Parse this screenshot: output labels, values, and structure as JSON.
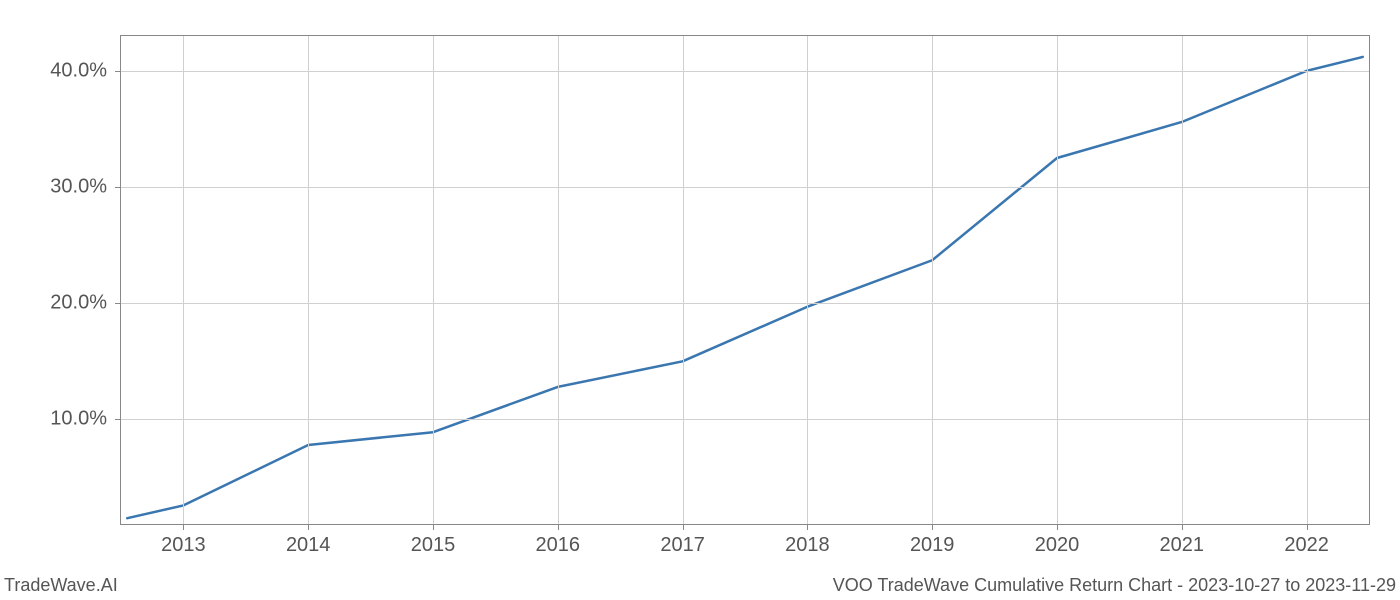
{
  "chart": {
    "type": "line",
    "background_color": "#ffffff",
    "grid_color": "#d0d0d0",
    "border_color": "#888888",
    "text_color": "#555555",
    "line_color": "#3a76af",
    "line_width": 2.5,
    "label_fontsize": 20,
    "footer_fontsize": 18,
    "xlim": [
      2012.5,
      2022.5
    ],
    "ylim": [
      1.0,
      43.0
    ],
    "xtick_labels": [
      "2013",
      "2014",
      "2015",
      "2016",
      "2017",
      "2018",
      "2019",
      "2020",
      "2021",
      "2022"
    ],
    "xtick_values": [
      2013,
      2014,
      2015,
      2016,
      2017,
      2018,
      2019,
      2020,
      2021,
      2022
    ],
    "ytick_labels": [
      "10.0%",
      "20.0%",
      "30.0%",
      "40.0%"
    ],
    "ytick_values": [
      10,
      20,
      30,
      40
    ],
    "data_x": [
      2012.55,
      2013,
      2014,
      2015,
      2016,
      2017,
      2018,
      2019,
      2020,
      2021,
      2022,
      2022.45
    ],
    "data_y": [
      1.5,
      2.6,
      7.8,
      8.9,
      12.8,
      15.0,
      19.7,
      23.7,
      32.5,
      35.6,
      40.0,
      41.2
    ]
  },
  "footer": {
    "left": "TradeWave.AI",
    "right": "VOO TradeWave Cumulative Return Chart - 2023-10-27 to 2023-11-29"
  }
}
